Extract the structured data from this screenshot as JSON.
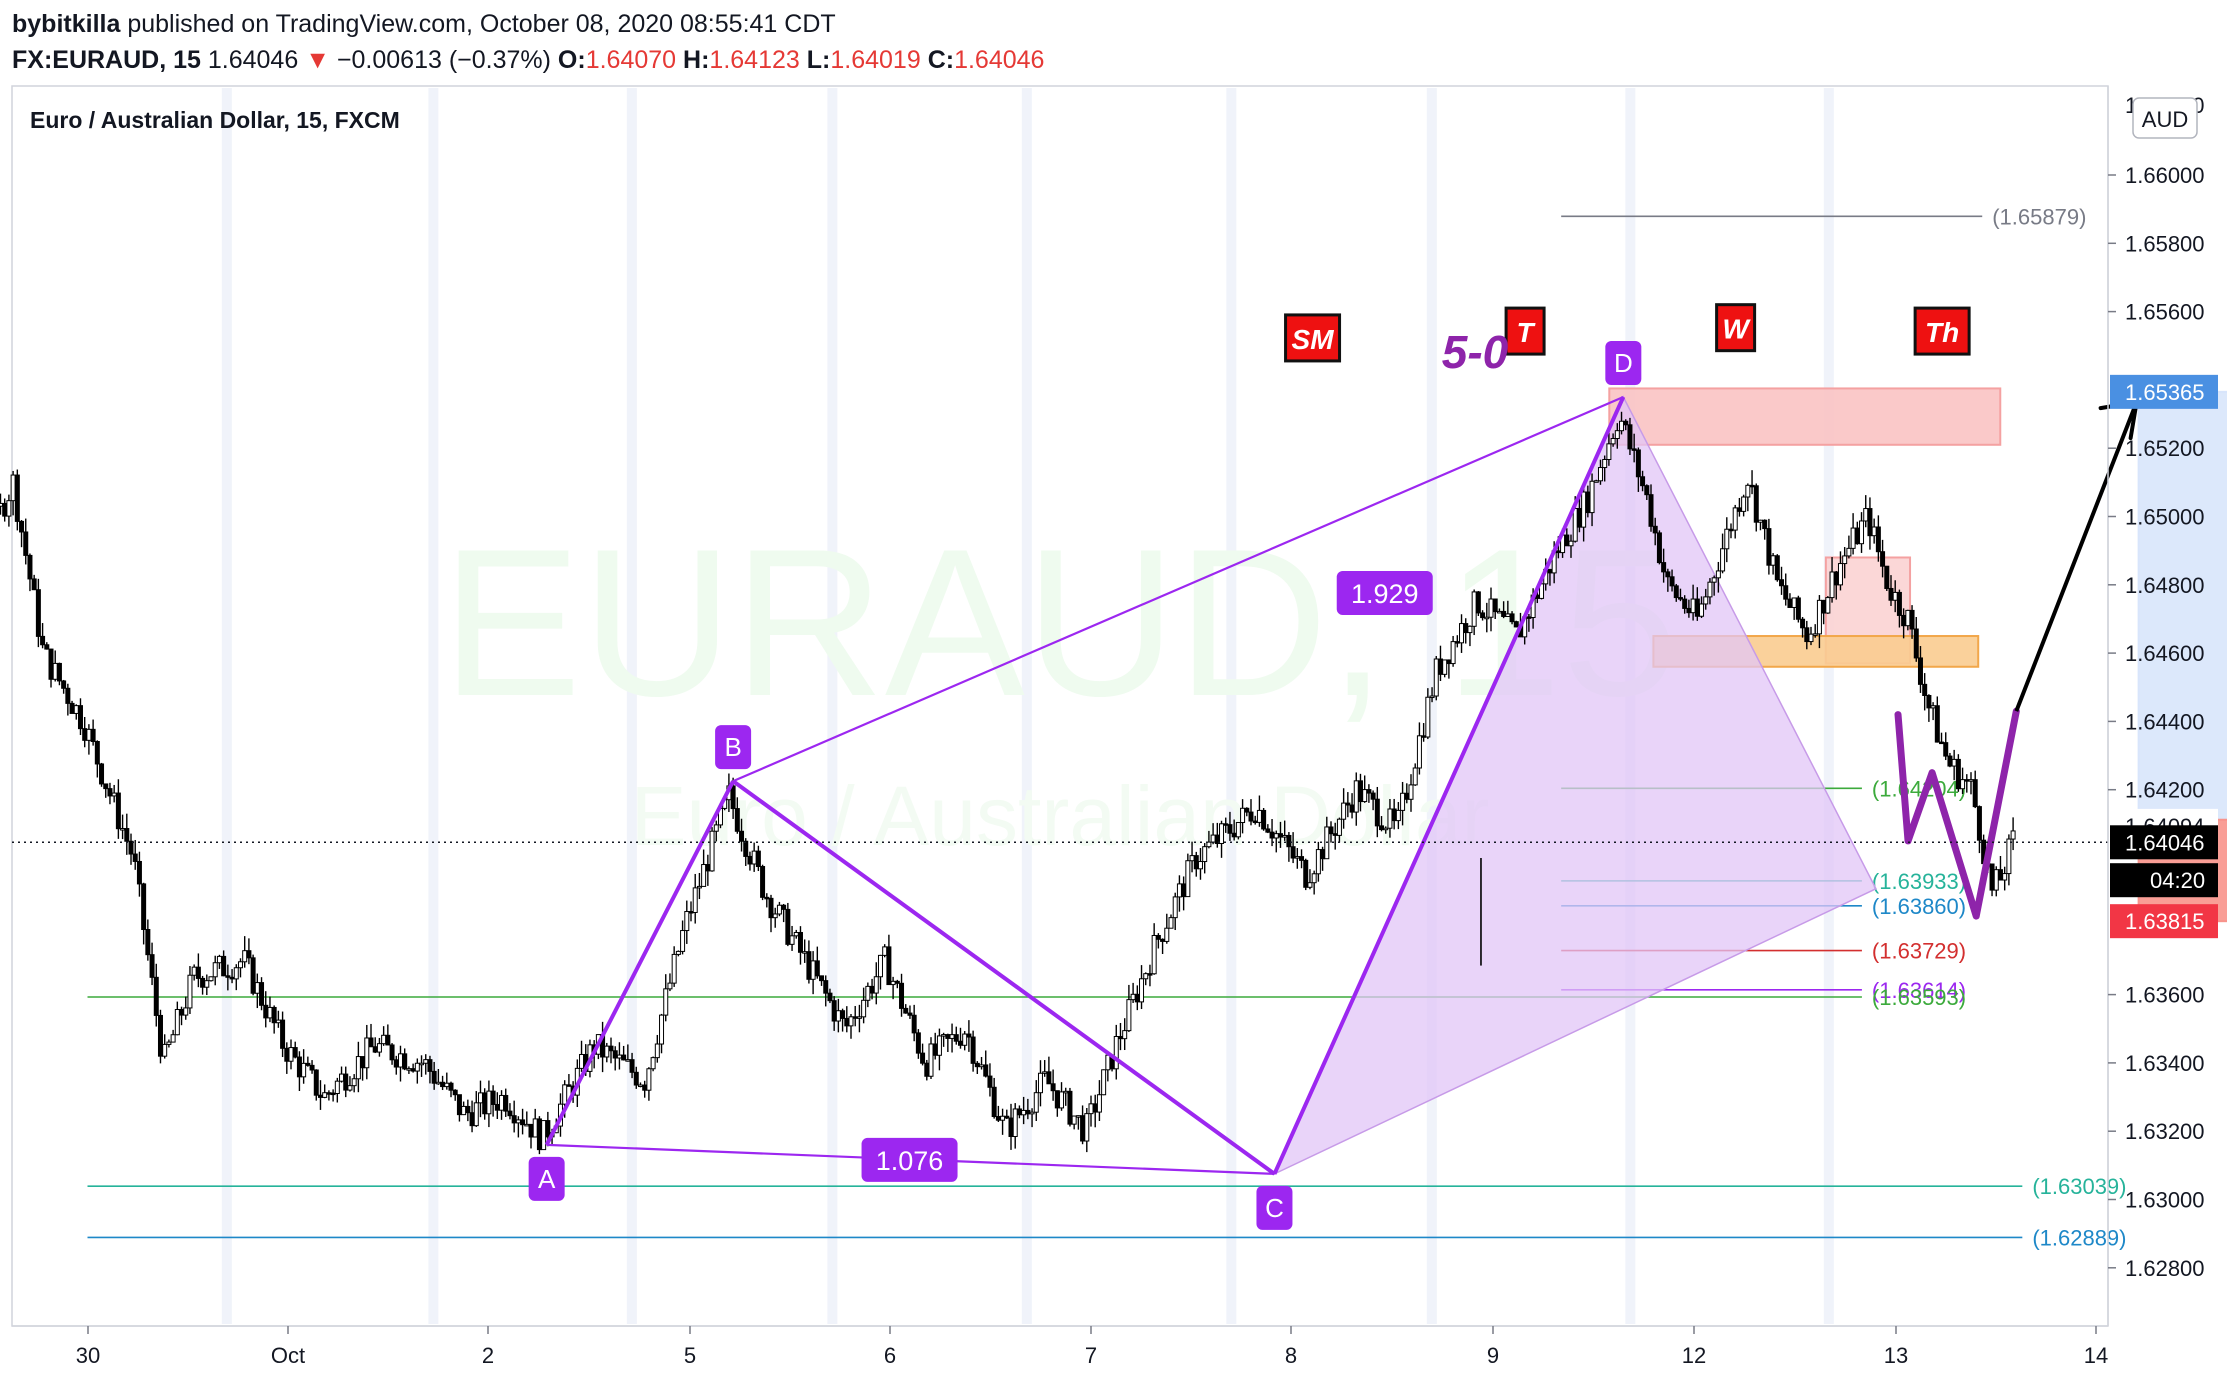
{
  "header": {
    "author": "bybitkilla",
    "published_text": "published on TradingView.com, October 08, 2020 08:55:41 CDT",
    "symbol": "FX:EURAUD, 15",
    "last": "1.64046",
    "change_arrow": "▼",
    "change": "−0.00613 (−0.37%)",
    "o_label": "O:",
    "o_value": "1.64070",
    "h_label": "H:",
    "h_value": "1.64123",
    "l_label": "L:",
    "l_value": "1.64019",
    "c_label": "C:",
    "c_value": "1.64046"
  },
  "chart_title": "Euro / Australian Dollar, 15, FXCM",
  "watermark": {
    "symbol": "EURAUD, 15",
    "name": "Euro / Australian Dollar"
  },
  "currency_badge": "AUD",
  "colors": {
    "pattern": "#9c27f0",
    "pattern_fill": "#e2c6f7",
    "up_arrow": "#000000",
    "target_zone": "#d8e5fb",
    "stop_zone": "#f8938b",
    "supply_zone": "#f9c3c3",
    "supply_zone_edge": "#f4a1a1",
    "orange_zone": "#f9cc90",
    "orange_zone_edge": "#f2a74a",
    "candle": "#000000",
    "green_line": "#3caa3c",
    "teal_line": "#26b39a",
    "blue_line": "#1e88c8",
    "red_line": "#d32f2f",
    "label_red_bg": "#ee1111"
  },
  "chart_data": {
    "type": "candlestick",
    "symbol": "FX:EURAUD",
    "timeframe": "15",
    "x_ticks": [
      "30",
      "Oct",
      "2",
      "5",
      "6",
      "7",
      "8",
      "9",
      "12",
      "13",
      "14"
    ],
    "y_ticks": [
      "1.66000",
      "1.65800",
      "1.65600",
      "1.65200",
      "1.65000",
      "1.64800",
      "1.64600",
      "1.64400",
      "1.64200",
      "1.63600",
      "1.63400",
      "1.63200",
      "1.63000",
      "1.62800"
    ],
    "ylim": [
      1.627,
      1.6614
    ],
    "price_tags": [
      {
        "text": "1.65365",
        "value": 1.65365,
        "bg": "#4a90e2",
        "fg": "#ffffff"
      },
      {
        "text": "1.64094",
        "value": 1.64094,
        "bg": "#ffffff",
        "fg": "#131722"
      },
      {
        "text": "1.64046",
        "value": 1.64046,
        "bg": "#000000",
        "fg": "#ffffff"
      },
      {
        "text": "04:20",
        "value": 1.63935,
        "bg": "#000000",
        "fg": "#ffffff"
      },
      {
        "text": "1.63815",
        "value": 1.63815,
        "bg": "#f23645",
        "fg": "#ffffff"
      }
    ],
    "pattern": {
      "name": "5-0",
      "points": [
        {
          "label": "A",
          "time": 1.29,
          "price": 1.6316
        },
        {
          "label": "B",
          "time": 2.22,
          "price": 1.64225
        },
        {
          "label": "C",
          "time": 4.92,
          "price": 1.63075
        },
        {
          "label": "D",
          "time": 6.66,
          "price": 1.6535
        }
      ],
      "ratios": [
        {
          "text": "1.929",
          "time": 5.47,
          "price": 1.6477
        },
        {
          "text": "1.076",
          "time": 3.1,
          "price": 1.6311
        }
      ],
      "projection_end": {
        "time": 7.92,
        "price": 1.6391
      }
    },
    "levels": [
      {
        "text": "(1.65879)",
        "value": 1.65879,
        "color": "#787b86",
        "from": 6.35,
        "to": 8.45
      },
      {
        "text": "(1.64204)",
        "value": 1.64204,
        "color": "#3caa3c",
        "from": 6.35,
        "to": 7.85
      },
      {
        "text": "(1.63933)",
        "value": 1.63933,
        "color": "#26b39a",
        "from": 6.35,
        "to": 7.85
      },
      {
        "text": "(1.63860)",
        "value": 1.6386,
        "color": "#1e88c8",
        "from": 6.35,
        "to": 7.85
      },
      {
        "text": "(1.63729)",
        "value": 1.63729,
        "color": "#d32f2f",
        "from": 6.35,
        "to": 7.85
      },
      {
        "text": "(1.63614)",
        "value": 1.63614,
        "color": "#9c27f0",
        "from": 6.35,
        "to": 7.85
      },
      {
        "text": "(1.63593)",
        "value": 1.63593,
        "color": "#3caa3c",
        "from": -1.0,
        "to": 7.85
      },
      {
        "text": "(1.63039)",
        "value": 1.63039,
        "color": "#26b39a",
        "from": -1.0,
        "to": 8.65
      },
      {
        "text": "(1.62889)",
        "value": 1.62889,
        "color": "#1e88c8",
        "from": -1.0,
        "to": 8.65
      }
    ],
    "zones": [
      {
        "name": "supply-zone",
        "t1": 6.59,
        "t2": 8.54,
        "p1": 1.65375,
        "p2": 1.6521,
        "fill": "#f9c3c3",
        "edge": "#f4a1a1"
      },
      {
        "name": "supply-zone-small",
        "t1": 7.67,
        "t2": 8.09,
        "p1": 1.6488,
        "p2": 1.6457,
        "fill": "#fbd3d3",
        "edge": "#f4a1a1"
      },
      {
        "name": "orange-zone",
        "t1": 6.81,
        "t2": 8.43,
        "p1": 1.6465,
        "p2": 1.6456,
        "fill": "#f9cc90",
        "edge": "#f2a74a"
      },
      {
        "name": "target-zone",
        "t1": 9.23,
        "t2": 10.25,
        "p1": 1.65365,
        "p2": 1.64112,
        "fill": "#d8e5fb",
        "edge": "#d8e5fb"
      },
      {
        "name": "stop-zone",
        "t1": 9.23,
        "t2": 10.25,
        "p1": 1.64112,
        "p2": 1.63815,
        "fill": "#f8938b",
        "edge": "#f8938b"
      }
    ],
    "session_labels": [
      {
        "text": "SM",
        "time": 5.11,
        "price": 1.6552
      },
      {
        "text": "T",
        "time": 6.17,
        "price": 1.6554
      },
      {
        "text": "W",
        "time": 7.22,
        "price": 1.6555
      },
      {
        "text": "Th",
        "time": 8.25,
        "price": 1.6554
      }
    ],
    "current_price": 1.64046,
    "candles_note": "~15-min OHLC candles approx. Sep 29 – Oct 8 2020"
  }
}
